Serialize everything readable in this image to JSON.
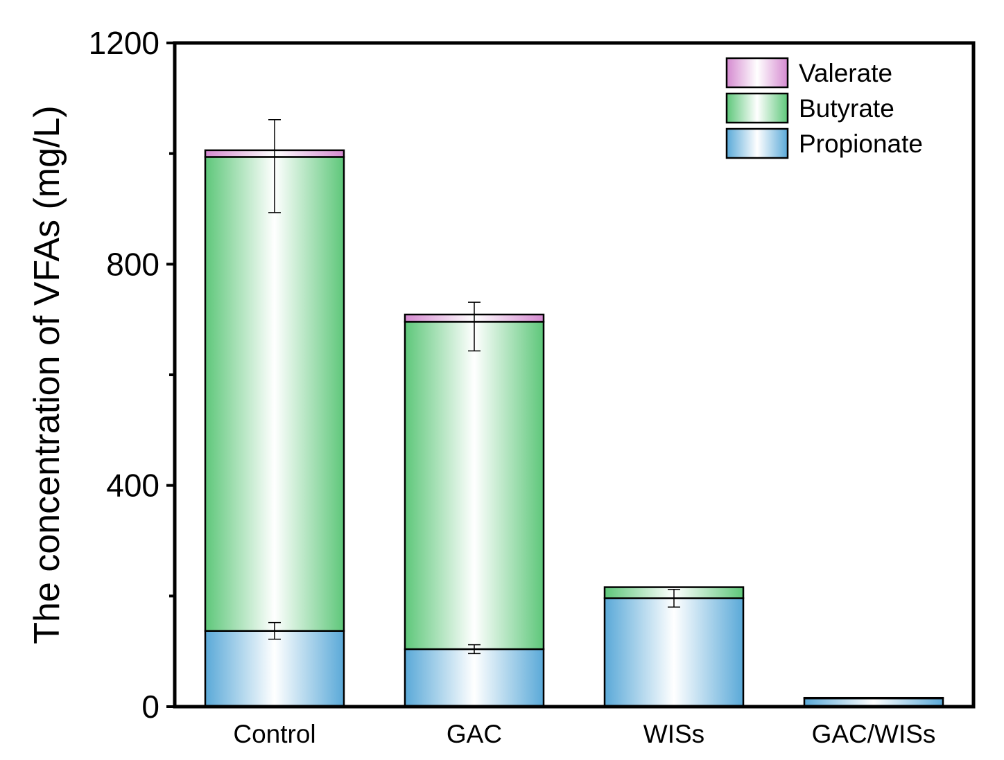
{
  "chart_data": {
    "type": "bar",
    "stacked": true,
    "title": "",
    "xlabel": "",
    "ylabel": "The concentration of VFAs (mg/L)",
    "ylim": [
      0,
      1200
    ],
    "yticks": [
      0,
      400,
      800,
      1200
    ],
    "yticks_minor": [
      200,
      600,
      1000
    ],
    "grid": false,
    "legend_position": "top-right",
    "categories": [
      "Control",
      "GAC",
      "WISs",
      "GAC/WISs"
    ],
    "series": [
      {
        "name": "Propionate",
        "color": "#5aa9d8",
        "values": [
          137,
          104,
          196,
          15
        ],
        "errors": [
          15,
          8,
          16,
          0
        ]
      },
      {
        "name": "Butyrate",
        "color": "#5ec77a",
        "values": [
          857,
          592,
          20,
          1
        ],
        "errors": [
          0,
          0,
          0,
          0
        ]
      },
      {
        "name": "Valerate",
        "color": "#d58ad0",
        "values": [
          12,
          13,
          0,
          0
        ],
        "errors": [
          0,
          0,
          0,
          0
        ]
      }
    ],
    "total_errors": [
      84,
      44,
      0,
      0
    ],
    "legend_order": [
      "Valerate",
      "Butyrate",
      "Propionate"
    ]
  }
}
